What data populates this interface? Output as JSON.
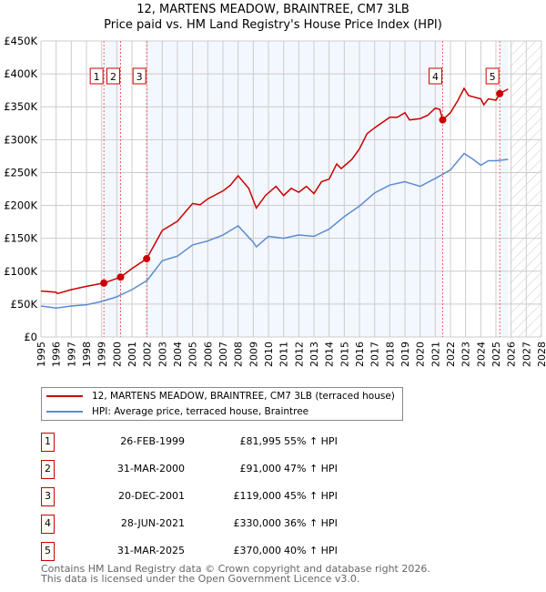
{
  "chart_data": {
    "type": "line",
    "title": "12, MARTENS MEADOW, BRAINTREE, CM7 3LB",
    "subtitle": "Price paid vs. HM Land Registry's House Price Index (HPI)",
    "xlim": [
      1995,
      2028
    ],
    "ylim": [
      0,
      450000
    ],
    "x_ticks": [
      "1995",
      "1996",
      "1997",
      "1998",
      "1999",
      "2000",
      "2001",
      "2002",
      "2003",
      "2004",
      "2005",
      "2006",
      "2007",
      "2008",
      "2009",
      "2010",
      "2011",
      "2012",
      "2013",
      "2014",
      "2015",
      "2016",
      "2017",
      "2018",
      "2019",
      "2020",
      "2021",
      "2022",
      "2023",
      "2024",
      "2025",
      "2026",
      "2027",
      "2028"
    ],
    "y_ticks": [
      {
        "v": 0,
        "label": "£0"
      },
      {
        "v": 50000,
        "label": "£50K"
      },
      {
        "v": 100000,
        "label": "£100K"
      },
      {
        "v": 150000,
        "label": "£150K"
      },
      {
        "v": 200000,
        "label": "£200K"
      },
      {
        "v": 250000,
        "label": "£250K"
      },
      {
        "v": 300000,
        "label": "£300K"
      },
      {
        "v": 350000,
        "label": "£350K"
      },
      {
        "v": 400000,
        "label": "£400K"
      },
      {
        "v": 450000,
        "label": "£450K"
      }
    ],
    "grid": true,
    "shaded_ranges": [
      [
        1999.15,
        2000.25
      ],
      [
        2001.97,
        2021.49
      ],
      [
        2025.25,
        2025.8
      ]
    ],
    "forecast_hatch_from": 2025.9,
    "series": [
      {
        "name": "12, MARTENS MEADOW, BRAINTREE, CM7 3LB (terraced house)",
        "color": "#cc0000",
        "x": [
          1995,
          1996,
          1996.1,
          1997,
          1998,
          1999.15,
          2000.25,
          2001,
          2001.97,
          2003,
          2004,
          2005,
          2005.5,
          2006,
          2007,
          2007.5,
          2008,
          2008.7,
          2009.2,
          2009.8,
          2010.5,
          2011,
          2011.5,
          2012,
          2012.5,
          2013,
          2013.5,
          2014,
          2014.5,
          2014.8,
          2015.5,
          2016,
          2016.5,
          2017,
          2018,
          2018.5,
          2019,
          2019.3,
          2020,
          2020.5,
          2021,
          2021.3,
          2021.49,
          2022,
          2022.5,
          2022.9,
          2023.2,
          2024,
          2024.2,
          2024.5,
          2025,
          2025.25,
          2025.8
        ],
        "y": [
          70000,
          68000,
          66000,
          72000,
          77000,
          82000,
          91000,
          104000,
          119000,
          162000,
          176000,
          203000,
          201000,
          210000,
          222000,
          231000,
          245000,
          226000,
          196000,
          215000,
          229000,
          215000,
          226000,
          220000,
          229000,
          218000,
          236000,
          240000,
          263000,
          256000,
          270000,
          286000,
          309000,
          318000,
          334000,
          334000,
          341000,
          330000,
          332000,
          337000,
          348000,
          346000,
          330000,
          341000,
          360000,
          378000,
          367000,
          362000,
          353000,
          362000,
          360000,
          370000,
          377000
        ]
      },
      {
        "name": "HPI: Average price, terraced house, Braintree",
        "color": "#5b8bd0",
        "x": [
          1995,
          1996,
          1997,
          1998,
          1999,
          2000,
          2001,
          2002,
          2003,
          2004,
          2005,
          2006,
          2007,
          2008,
          2009,
          2009.2,
          2010,
          2011,
          2012,
          2013,
          2014,
          2015,
          2016,
          2017,
          2018,
          2019,
          2020,
          2021,
          2022,
          2022.9,
          2023.5,
          2024,
          2024.5,
          2025,
          2025.8
        ],
        "y": [
          47000,
          44000,
          47000,
          49000,
          54000,
          61000,
          72000,
          86000,
          116000,
          123000,
          140000,
          146000,
          155000,
          169000,
          144000,
          137000,
          153000,
          150000,
          155000,
          153000,
          164000,
          183000,
          199000,
          219000,
          231000,
          236000,
          229000,
          241000,
          254000,
          279000,
          270000,
          261000,
          268000,
          268000,
          270000
        ]
      }
    ],
    "sales": [
      {
        "n": "1",
        "x": 1999.15,
        "date": "26-FEB-1999",
        "price": "£81,995",
        "value": 81995,
        "hpi": "55% ↑ HPI"
      },
      {
        "n": "2",
        "x": 2000.25,
        "date": "31-MAR-2000",
        "price": "£91,000",
        "value": 91000,
        "hpi": "47% ↑ HPI"
      },
      {
        "n": "3",
        "x": 2001.97,
        "date": "20-DEC-2001",
        "price": "£119,000",
        "value": 119000,
        "hpi": "45% ↑ HPI"
      },
      {
        "n": "4",
        "x": 2021.49,
        "date": "28-JUN-2021",
        "price": "£330,000",
        "value": 330000,
        "hpi": "36% ↑ HPI"
      },
      {
        "n": "5",
        "x": 2025.25,
        "date": "31-MAR-2025",
        "price": "£370,000",
        "value": 370000,
        "hpi": "40% ↑ HPI"
      }
    ]
  },
  "footer": {
    "line1": "Contains HM Land Registry data © Crown copyright and database right 2026.",
    "line2": "This data is licensed under the Open Government Licence v3.0."
  }
}
